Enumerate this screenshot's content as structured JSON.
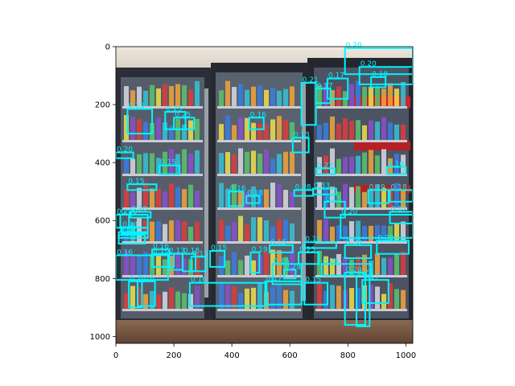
{
  "colors": {
    "box": "#00f5ff",
    "axis": "#000000",
    "page_bg": "#ffffff"
  },
  "axes": {
    "x_range": [
      0,
      1024
    ],
    "y_range": [
      1024,
      0
    ],
    "x_ticks": [
      0,
      200,
      400,
      600,
      800,
      1000
    ],
    "y_ticks": [
      0,
      200,
      400,
      600,
      800,
      1000
    ]
  },
  "photo": {
    "description_icon": "store-cooler-photo",
    "palette": {
      "ceiling": "#e9e1d8",
      "frame": "#2a2a30",
      "interior": "#4b5362",
      "floor": "#7a5a45",
      "sign": "#c8262c"
    }
  },
  "detections": [
    {
      "score": "0.20",
      "x1": 790,
      "y1": 5,
      "x2": 1024,
      "y2": 95
    },
    {
      "score": "0.20",
      "x1": 840,
      "y1": 70,
      "x2": 1024,
      "y2": 130
    },
    {
      "score": "0.18",
      "x1": 880,
      "y1": 105,
      "x2": 930,
      "y2": 140
    },
    {
      "score": "0.17",
      "x1": 730,
      "y1": 110,
      "x2": 800,
      "y2": 180
    },
    {
      "score": "0.17",
      "x1": 690,
      "y1": 145,
      "x2": 740,
      "y2": 195
    },
    {
      "score": "0.21",
      "x1": 640,
      "y1": 125,
      "x2": 690,
      "y2": 270
    },
    {
      "score": "0.15",
      "x1": 40,
      "y1": 215,
      "x2": 125,
      "y2": 300
    },
    {
      "score": "0.25",
      "x1": 170,
      "y1": 225,
      "x2": 240,
      "y2": 285
    },
    {
      "score": "0.25",
      "x1": 200,
      "y1": 245,
      "x2": 270,
      "y2": 285
    },
    {
      "score": "0.16",
      "x1": 460,
      "y1": 245,
      "x2": 510,
      "y2": 285
    },
    {
      "score": "0.13",
      "x1": 610,
      "y1": 315,
      "x2": 665,
      "y2": 365
    },
    {
      "score": "0.20",
      "x1": 0,
      "y1": 365,
      "x2": 60,
      "y2": 385
    },
    {
      "score": "0.15",
      "x1": 150,
      "y1": 410,
      "x2": 220,
      "y2": 440
    },
    {
      "score": "0.23",
      "x1": 690,
      "y1": 420,
      "x2": 755,
      "y2": 440
    },
    {
      "score": "0.16",
      "x1": 935,
      "y1": 415,
      "x2": 1000,
      "y2": 440
    },
    {
      "score": "0.15",
      "x1": 40,
      "y1": 475,
      "x2": 140,
      "y2": 495
    },
    {
      "score": "0.28",
      "x1": 615,
      "y1": 495,
      "x2": 680,
      "y2": 515
    },
    {
      "score": "0.33",
      "x1": 680,
      "y1": 490,
      "x2": 760,
      "y2": 510
    },
    {
      "score": "0.16",
      "x1": 390,
      "y1": 500,
      "x2": 440,
      "y2": 550
    },
    {
      "score": "0.18",
      "x1": 450,
      "y1": 515,
      "x2": 495,
      "y2": 540
    },
    {
      "score": "0.19",
      "x1": 870,
      "y1": 495,
      "x2": 940,
      "y2": 540
    },
    {
      "score": "0.18",
      "x1": 945,
      "y1": 495,
      "x2": 1024,
      "y2": 535
    },
    {
      "score": "0.15",
      "x1": 720,
      "y1": 535,
      "x2": 790,
      "y2": 590
    },
    {
      "score": "0.17",
      "x1": 945,
      "y1": 570,
      "x2": 1024,
      "y2": 610
    },
    {
      "score": "0.20",
      "x1": 50,
      "y1": 570,
      "x2": 120,
      "y2": 590
    },
    {
      "score": "0.20",
      "x1": 0,
      "y1": 580,
      "x2": 45,
      "y2": 625
    },
    {
      "score": "0.20",
      "x1": 15,
      "y1": 580,
      "x2": 110,
      "y2": 625
    },
    {
      "score": "0.20",
      "x1": 775,
      "y1": 580,
      "x2": 1024,
      "y2": 660
    },
    {
      "score": "0.21",
      "x1": 20,
      "y1": 625,
      "x2": 110,
      "y2": 645
    },
    {
      "score": "0.20",
      "x1": 10,
      "y1": 640,
      "x2": 110,
      "y2": 660
    },
    {
      "score": "0.20",
      "x1": 10,
      "y1": 650,
      "x2": 100,
      "y2": 680
    },
    {
      "score": "0.19",
      "x1": 650,
      "y1": 675,
      "x2": 760,
      "y2": 695
    },
    {
      "score": "0.15",
      "x1": 530,
      "y1": 685,
      "x2": 610,
      "y2": 710
    },
    {
      "score": "0.20",
      "x1": 900,
      "y1": 670,
      "x2": 1010,
      "y2": 715
    },
    {
      "score": "0.20",
      "x1": 790,
      "y1": 685,
      "x2": 880,
      "y2": 730
    },
    {
      "score": "0.16",
      "x1": 125,
      "y1": 700,
      "x2": 185,
      "y2": 760
    },
    {
      "score": "0.16",
      "x1": 125,
      "y1": 715,
      "x2": 200,
      "y2": 760
    },
    {
      "score": "0.13",
      "x1": 180,
      "y1": 715,
      "x2": 230,
      "y2": 770
    },
    {
      "score": "0.18",
      "x1": 230,
      "y1": 715,
      "x2": 275,
      "y2": 775
    },
    {
      "score": "0.13",
      "x1": 260,
      "y1": 725,
      "x2": 310,
      "y2": 775
    },
    {
      "score": "0.15",
      "x1": 325,
      "y1": 705,
      "x2": 375,
      "y2": 760
    },
    {
      "score": "0.19",
      "x1": 465,
      "y1": 710,
      "x2": 495,
      "y2": 780
    },
    {
      "score": "0.23",
      "x1": 630,
      "y1": 710,
      "x2": 700,
      "y2": 750
    },
    {
      "score": "0.16",
      "x1": 540,
      "y1": 750,
      "x2": 640,
      "y2": 820
    },
    {
      "score": "0.28",
      "x1": 580,
      "y1": 770,
      "x2": 620,
      "y2": 800
    },
    {
      "score": "0.26",
      "x1": 710,
      "y1": 750,
      "x2": 880,
      "y2": 790
    },
    {
      "score": "0.16",
      "x1": 0,
      "y1": 720,
      "x2": 180,
      "y2": 805
    },
    {
      "score": "0.16",
      "x1": 45,
      "y1": 810,
      "x2": 90,
      "y2": 900
    },
    {
      "score": "0.16",
      "x1": 75,
      "y1": 810,
      "x2": 135,
      "y2": 895
    },
    {
      "score": "0.16",
      "x1": 255,
      "y1": 815,
      "x2": 520,
      "y2": 895
    },
    {
      "score": "0.17",
      "x1": 515,
      "y1": 810,
      "x2": 640,
      "y2": 890
    },
    {
      "score": "0.15",
      "x1": 650,
      "y1": 815,
      "x2": 730,
      "y2": 890
    },
    {
      "score": "0.20",
      "x1": 790,
      "y1": 780,
      "x2": 860,
      "y2": 960
    },
    {
      "score": "0.25",
      "x1": 830,
      "y1": 790,
      "x2": 875,
      "y2": 965
    },
    {
      "score": "0.17",
      "x1": 850,
      "y1": 805,
      "x2": 940,
      "y2": 885
    }
  ]
}
